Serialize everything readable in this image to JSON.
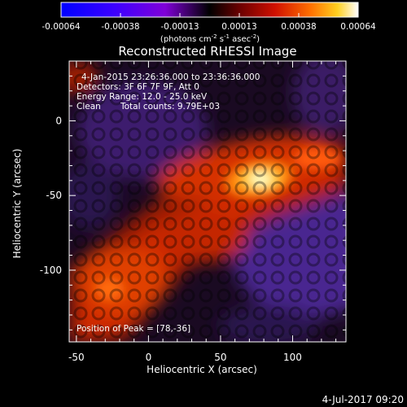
{
  "colorbar": {
    "ticks": [
      "-0.00064",
      "-0.00038",
      "-0.00013",
      "0.00013",
      "0.00038",
      "0.00064"
    ],
    "unit_parts": [
      "(photons cm",
      "-2",
      " s",
      "-1",
      " asec",
      "-2",
      ")"
    ]
  },
  "info": {
    "time_range": "4-Jan-2015 23:26:36.000 to 23:36:36.000",
    "detectors": "Detectors: 3F 6F 7F 9F, Att 0",
    "energy": "Energy Range: 12.0 - 25.0 keV",
    "method": "Clean",
    "total_counts": "Total counts: 9.79E+03",
    "peak": "Position of Peak = [78,-36]"
  },
  "footer": {
    "date": "4-Jul-2017 09:20"
  },
  "colors": {
    "background": "#000000",
    "axis": "#ffffff",
    "peak": "#ffffc8",
    "negative": "#3c1e6e"
  },
  "chart_data": {
    "type": "heatmap",
    "title": "Reconstructed RHESSI Image",
    "xlabel": "Heliocentric X (arcsec)",
    "ylabel": "Heliocentric Y (arcsec)",
    "xlim": [
      -55,
      137
    ],
    "ylim": [
      -148,
      40
    ],
    "xticks": [
      -50,
      0,
      50,
      100
    ],
    "yticks": [
      0,
      -50,
      -100
    ],
    "clim": [
      -0.00064,
      0.00064
    ],
    "peak": [
      78,
      -36
    ]
  }
}
